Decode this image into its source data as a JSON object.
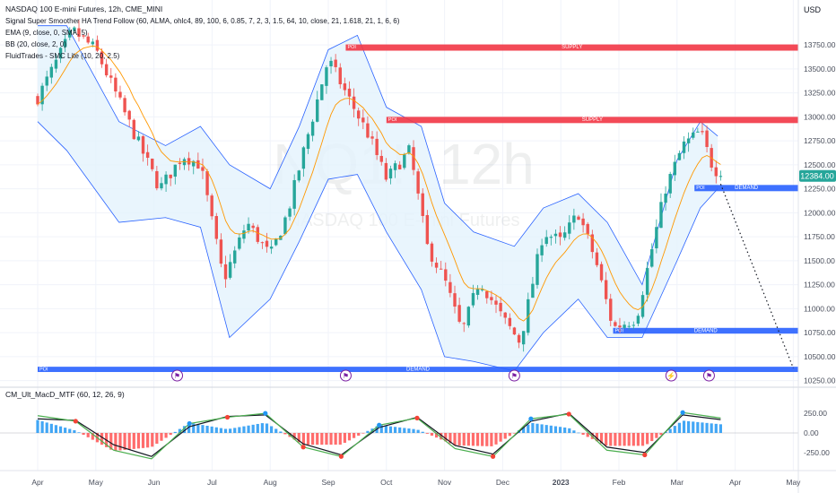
{
  "legend": {
    "line1": "NASDAQ 100 E-mini Futures, 12h, CME_MINI",
    "line2": "Signal Super Smoother HA Trend Follow (60, ALMA, ohlc4, 89, 100, 6, 0.85, 7, 2, 3, 1.5, 64, 10, close, 21, 1.618, 21, 1, 6, 6)",
    "line3": "EMA (9, close, 0, SMA, 5)",
    "line4": "BB (20, close, 2, 0)",
    "line5": "FluidTrades - SMC Lite (10, 20, 2.5)"
  },
  "watermark": {
    "symbol": "NQ1!, 12h",
    "name": "NASDAQ 100 E-mini Futures"
  },
  "sub_title": "CM_Ult_MacD_MTF (60, 12, 26, 9)",
  "currency": "USD",
  "last_price": "12384.00",
  "zone_labels": {
    "supply": "SUPPLY",
    "demand": "DEMAND",
    "poi": "POI"
  },
  "colors": {
    "background": "#ffffff",
    "grid": "#f0f3fa",
    "up_candle": "#26a69a",
    "down_candle": "#ef5350",
    "bb_line": "#2962ff",
    "bb_fill": "#e3f2fd",
    "ema": "#ff9800",
    "supply": "#f23645",
    "demand": "#2962ff",
    "price_tag": "#26a69a",
    "macd_up": "#2196f3",
    "macd_down": "#ff5252",
    "signal_green": "#4caf50",
    "signal_red": "#f44336",
    "text": "#131722",
    "axis_text": "#4a4f5c"
  },
  "icons": [
    "flag-icon",
    "lightning-icon"
  ],
  "chart_data": [
    {
      "type": "candlestick",
      "title": "NASDAQ 100 E-mini Futures, 12h, CME_MINI",
      "x_labels": [
        "Apr",
        "May",
        "Jun",
        "Jul",
        "Aug",
        "Sep",
        "Oct",
        "Nov",
        "Dec",
        "2023",
        "Feb",
        "Mar",
        "Apr",
        "May"
      ],
      "y_ticks": [
        10250,
        10500,
        10750,
        11000,
        11250,
        11500,
        11750,
        12000,
        12250,
        12500,
        12750,
        13000,
        13250,
        13500,
        13750
      ],
      "ylim": [
        10200,
        14050
      ],
      "price_path": [
        [
          0.0,
          13200
        ],
        [
          0.6,
          13900
        ],
        [
          1.0,
          13700
        ],
        [
          1.6,
          12900
        ],
        [
          2.1,
          12250
        ],
        [
          2.5,
          12600
        ],
        [
          2.8,
          12500
        ],
        [
          3.2,
          11300
        ],
        [
          3.6,
          11900
        ],
        [
          4.0,
          11550
        ],
        [
          4.3,
          12000
        ],
        [
          4.6,
          12700
        ],
        [
          5.0,
          13600
        ],
        [
          5.3,
          13250
        ],
        [
          5.7,
          12800
        ],
        [
          6.0,
          12350
        ],
        [
          6.4,
          12650
        ],
        [
          6.7,
          11650
        ],
        [
          7.0,
          11300
        ],
        [
          7.3,
          10750
        ],
        [
          7.6,
          11300
        ],
        [
          8.0,
          10900
        ],
        [
          8.3,
          10650
        ],
        [
          8.7,
          11800
        ],
        [
          9.0,
          11700
        ],
        [
          9.3,
          12000
        ],
        [
          9.6,
          11500
        ],
        [
          9.9,
          10800
        ],
        [
          10.3,
          10900
        ],
        [
          10.8,
          12250
        ],
        [
          11.1,
          12700
        ],
        [
          11.4,
          12850
        ],
        [
          11.6,
          12500
        ],
        [
          11.75,
          12384
        ]
      ],
      "bb_upper": [
        [
          0.0,
          13950
        ],
        [
          0.5,
          13950
        ],
        [
          1.4,
          12950
        ],
        [
          2.2,
          12700
        ],
        [
          2.8,
          12900
        ],
        [
          3.3,
          12500
        ],
        [
          4.0,
          12250
        ],
        [
          4.5,
          12900
        ],
        [
          5.0,
          13700
        ],
        [
          5.5,
          13850
        ],
        [
          6.0,
          13100
        ],
        [
          6.6,
          12900
        ],
        [
          7.0,
          12100
        ],
        [
          7.5,
          11800
        ],
        [
          8.2,
          11650
        ],
        [
          8.7,
          12050
        ],
        [
          9.3,
          12200
        ],
        [
          9.8,
          11900
        ],
        [
          10.4,
          11250
        ],
        [
          11.0,
          12550
        ],
        [
          11.4,
          12950
        ],
        [
          11.7,
          12800
        ]
      ],
      "bb_lower": [
        [
          0.0,
          12950
        ],
        [
          0.5,
          12650
        ],
        [
          1.4,
          11900
        ],
        [
          2.2,
          11950
        ],
        [
          2.8,
          11850
        ],
        [
          3.3,
          10700
        ],
        [
          4.0,
          11100
        ],
        [
          4.5,
          11700
        ],
        [
          5.0,
          12350
        ],
        [
          5.5,
          12400
        ],
        [
          6.0,
          11800
        ],
        [
          6.6,
          11200
        ],
        [
          7.0,
          10500
        ],
        [
          7.5,
          10450
        ],
        [
          8.2,
          10350
        ],
        [
          8.7,
          10750
        ],
        [
          9.3,
          11100
        ],
        [
          9.8,
          10700
        ],
        [
          10.4,
          10700
        ],
        [
          11.0,
          11500
        ],
        [
          11.4,
          12050
        ],
        [
          11.7,
          12250
        ]
      ],
      "zones": [
        {
          "kind": "supply",
          "y_top": 13755,
          "y_bottom": 13690,
          "x_start": 5.3,
          "x_end": 14.0
        },
        {
          "kind": "supply",
          "y_top": 13000,
          "y_bottom": 12935,
          "x_start": 6.0,
          "x_end": 14.0
        },
        {
          "kind": "demand",
          "y_top": 12290,
          "y_bottom": 12225,
          "x_start": 11.3,
          "x_end": 14.0
        },
        {
          "kind": "demand",
          "y_top": 10800,
          "y_bottom": 10740,
          "x_start": 9.9,
          "x_end": 14.0
        },
        {
          "kind": "demand",
          "y_top": 10395,
          "y_bottom": 10340,
          "x_start": 0.0,
          "x_end": 14.0
        }
      ],
      "projection": [
        [
          11.75,
          12300
        ],
        [
          13.0,
          10380
        ]
      ],
      "event_markers": [
        2.4,
        5.3,
        8.2,
        10.9,
        11.55
      ]
    },
    {
      "type": "bar",
      "title": "CM_Ult_MacD_MTF (60, 12, 26, 9)",
      "y_ticks": [
        250.0,
        0.0,
        -250.0
      ],
      "ylim": [
        -400,
        400
      ],
      "macd_cycle_centers": [
        0.4,
        2.3,
        4.3,
        5.0,
        6.3,
        8.0,
        9.6,
        11.3
      ],
      "series": [
        {
          "name": "MACD",
          "values": [
            220,
            150,
            -220,
            -330,
            120,
            200,
            250,
            -180,
            -300,
            100,
            190,
            -200,
            -300,
            180,
            240,
            -220,
            -280,
            260,
            190
          ]
        },
        {
          "name": "Signal",
          "values": [
            180,
            160,
            -150,
            -300,
            80,
            210,
            230,
            -140,
            -280,
            70,
            200,
            -160,
            -270,
            150,
            250,
            -180,
            -250,
            230,
            170
          ]
        }
      ]
    }
  ]
}
